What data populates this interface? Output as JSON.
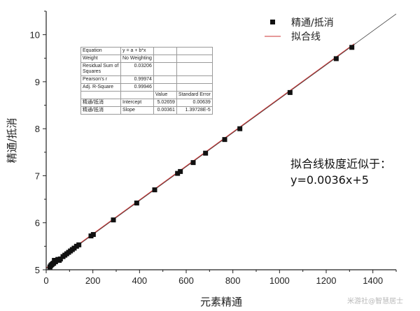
{
  "chart_data": {
    "type": "scatter",
    "xlabel": "元素精通",
    "ylabel": "精通/抵消",
    "xlim": [
      0,
      1500
    ],
    "ylim": [
      5,
      10.5
    ],
    "x_ticks": [
      "0",
      "200",
      "400",
      "600",
      "800",
      "1000",
      "1200",
      "1400"
    ],
    "y_ticks": [
      "5",
      "6",
      "7",
      "8",
      "9",
      "10"
    ],
    "legend": {
      "position": "top-right",
      "items": [
        "精通/抵消",
        "拟合线"
      ]
    },
    "fit": {
      "intercept": 5.02659,
      "slope": 0.00361
    },
    "annotation": {
      "line1": "拟合线极度近似于：",
      "line2": "y=0.0036x+5"
    },
    "colors": {
      "points": "#111111",
      "fit_line": "#cc3333",
      "reference_line": "#333333"
    },
    "points": [
      {
        "x": 16,
        "y": 5.06
      },
      {
        "x": 20,
        "y": 5.09
      },
      {
        "x": 24,
        "y": 5.11
      },
      {
        "x": 28,
        "y": 5.13
      },
      {
        "x": 32,
        "y": 5.14
      },
      {
        "x": 35,
        "y": 5.2
      },
      {
        "x": 40,
        "y": 5.17
      },
      {
        "x": 44,
        "y": 5.2
      },
      {
        "x": 50,
        "y": 5.22
      },
      {
        "x": 56,
        "y": 5.2
      },
      {
        "x": 61,
        "y": 5.23
      },
      {
        "x": 72,
        "y": 5.28
      },
      {
        "x": 80,
        "y": 5.31
      },
      {
        "x": 88,
        "y": 5.34
      },
      {
        "x": 96,
        "y": 5.37
      },
      {
        "x": 104,
        "y": 5.4
      },
      {
        "x": 112,
        "y": 5.43
      },
      {
        "x": 120,
        "y": 5.46
      },
      {
        "x": 130,
        "y": 5.5
      },
      {
        "x": 140,
        "y": 5.53
      },
      {
        "x": 192,
        "y": 5.72
      },
      {
        "x": 202,
        "y": 5.75
      },
      {
        "x": 288,
        "y": 6.06
      },
      {
        "x": 388,
        "y": 6.42
      },
      {
        "x": 465,
        "y": 6.7
      },
      {
        "x": 563,
        "y": 7.05
      },
      {
        "x": 575,
        "y": 7.09
      },
      {
        "x": 630,
        "y": 7.28
      },
      {
        "x": 683,
        "y": 7.48
      },
      {
        "x": 765,
        "y": 7.77
      },
      {
        "x": 830,
        "y": 8.0
      },
      {
        "x": 1045,
        "y": 8.77
      },
      {
        "x": 1243,
        "y": 9.49
      },
      {
        "x": 1310,
        "y": 9.73
      }
    ]
  },
  "stats_table": {
    "equation_label": "Equation",
    "equation_value": "y = a + b*x",
    "weight_label": "Weight",
    "weight_value": "No Weighting",
    "rss_label": "Residual Sum of Squares",
    "rss_value": "0.03206",
    "pearson_label": "Pearson's r",
    "pearson_value": "0.99974",
    "adjr_label": "Adj. R-Square",
    "adjr_value": "0.99946",
    "col_value": "Value",
    "col_se": "Standard Error",
    "row1_name": "精通/抵消",
    "row1_param": "Intercept",
    "row1_value": "5.02659",
    "row1_se": "0.00639",
    "row2_name": "精通/抵消",
    "row2_param": "Slope",
    "row2_value": "0.00361",
    "row2_se": "1.39728E-5"
  },
  "watermark": "米游社@智慧居士"
}
